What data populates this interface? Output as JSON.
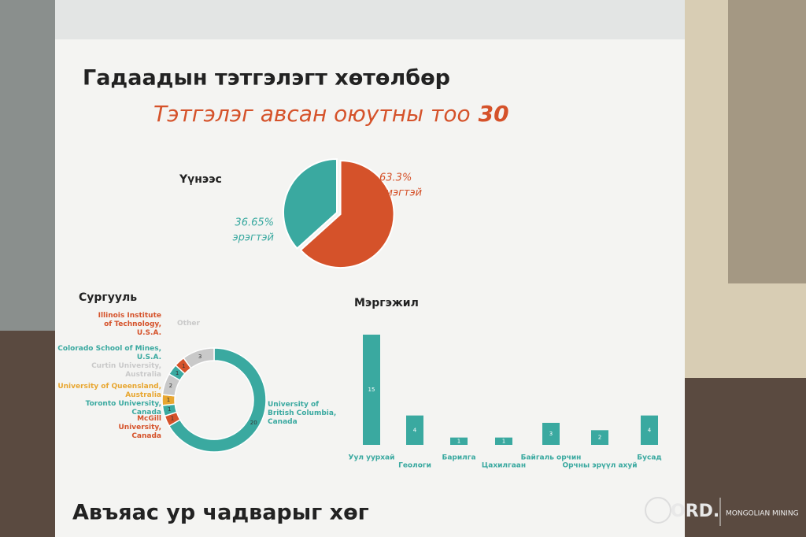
{
  "header": {
    "title": "Гадаадын тэтгэлэгт хөтөлбөр",
    "subtitle": "Тэтгэлэг авсан оюутны тоо",
    "total": 30
  },
  "chart_data": [
    {
      "type": "pie",
      "title": "Үүнээс",
      "categories": [
        "эмэгтэй",
        "эрэгтэй"
      ],
      "values": [
        63.3,
        36.65
      ],
      "value_labels": [
        "63.3%",
        "36.65%"
      ],
      "colors": [
        "#d5522a",
        "#3aa9a0"
      ]
    },
    {
      "type": "donut",
      "title": "Сургууль",
      "categories": [
        "University of British Columbia, Canada",
        "McGill University, Canada",
        "Toronto University, Canada",
        "University of Queensland, Australia",
        "Curtin University, Australia",
        "Colorado School of Mines, U.S.A.",
        "Illinois Institute of Technology, U.S.A.",
        "Other"
      ],
      "values": [
        20,
        1,
        1,
        1,
        2,
        1,
        1,
        3
      ],
      "colors": [
        "#3aa9a0",
        "#d5522a",
        "#3aa9a0",
        "#e8a630",
        "#c9c9c9",
        "#3aa9a0",
        "#d5522a",
        "#c9c9c9"
      ]
    },
    {
      "type": "bar",
      "title": "Мэргэжил",
      "categories": [
        "Уул уурхай",
        "Геологи",
        "Барилга",
        "Цахилгаан",
        "Байгаль орчин",
        "Орчны эрүүл ахуй",
        "Бусад"
      ],
      "values": [
        15,
        4,
        1,
        1,
        3,
        2,
        4
      ],
      "color": "#3aa9a0"
    }
  ],
  "footer": {
    "text": "Авъяас ур чадварыг хөг"
  },
  "watermark": {
    "logo": "ORD.",
    "caption": "MONGOLIAN MINING"
  }
}
